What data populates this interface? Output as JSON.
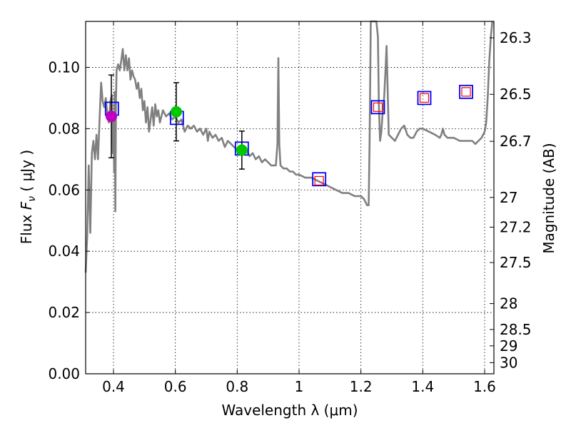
{
  "chart_data": {
    "type": "scatter",
    "title": "",
    "xlabel": "Wavelength  λ (μm)",
    "ylabel_prefix": "Flux ",
    "ylabel_symbol": "F",
    "ylabel_subscript": "ν",
    "ylabel_suffix": " ( μJy )",
    "y2label": "Magnitude (AB)",
    "xlim": [
      0.31,
      1.63
    ],
    "ylim": [
      0.0,
      0.115
    ],
    "grid": true,
    "xticks": [
      0.4,
      0.6,
      0.8,
      1.0,
      1.2,
      1.4,
      1.6
    ],
    "xtick_labels": [
      "0.4",
      "0.6",
      "0.8",
      "1",
      "1.2",
      "1.4",
      "1.6"
    ],
    "yticks": [
      0.0,
      0.02,
      0.04,
      0.06,
      0.08,
      0.1
    ],
    "ytick_labels": [
      "0.00",
      "0.02",
      "0.04",
      "0.06",
      "0.08",
      "0.10"
    ],
    "y2ticks": [
      {
        "label": "26.3",
        "mag": 26.3
      },
      {
        "label": "26.5",
        "mag": 26.5
      },
      {
        "label": "26.7",
        "mag": 26.7
      },
      {
        "label": "27",
        "mag": 27.0
      },
      {
        "label": "27.2",
        "mag": 27.2
      },
      {
        "label": "27.5",
        "mag": 27.5
      },
      {
        "label": "28",
        "mag": 28.0
      },
      {
        "label": "28.5",
        "mag": 28.5
      },
      {
        "label": "29",
        "mag": 29.0
      },
      {
        "label": "30",
        "mag": 30.0
      }
    ],
    "colors": {
      "spectrum": "#808080",
      "model_box": "#0000ff",
      "upper_box": "#ff0000",
      "violet_point": "#bf00bf",
      "green_point": "#00c800",
      "errorbar": "#000000"
    },
    "series": [
      {
        "name": "model spectrum",
        "kind": "line",
        "points": [
          [
            0.31,
            0.033
          ],
          [
            0.315,
            0.045
          ],
          [
            0.32,
            0.068
          ],
          [
            0.325,
            0.046
          ],
          [
            0.33,
            0.072
          ],
          [
            0.335,
            0.076
          ],
          [
            0.34,
            0.07
          ],
          [
            0.345,
            0.078
          ],
          [
            0.35,
            0.07
          ],
          [
            0.355,
            0.083
          ],
          [
            0.36,
            0.095
          ],
          [
            0.365,
            0.089
          ],
          [
            0.37,
            0.087
          ],
          [
            0.375,
            0.09
          ],
          [
            0.38,
            0.085
          ],
          [
            0.385,
            0.082
          ],
          [
            0.39,
            0.089
          ],
          [
            0.395,
            0.091
          ],
          [
            0.398,
            0.072
          ],
          [
            0.4,
            0.085
          ],
          [
            0.402,
            0.066
          ],
          [
            0.404,
            0.092
          ],
          [
            0.406,
            0.053
          ],
          [
            0.408,
            0.089
          ],
          [
            0.41,
            0.099
          ],
          [
            0.415,
            0.101
          ],
          [
            0.42,
            0.099
          ],
          [
            0.425,
            0.102
          ],
          [
            0.43,
            0.106
          ],
          [
            0.435,
            0.099
          ],
          [
            0.44,
            0.104
          ],
          [
            0.445,
            0.099
          ],
          [
            0.45,
            0.103
          ],
          [
            0.455,
            0.096
          ],
          [
            0.46,
            0.099
          ],
          [
            0.465,
            0.097
          ],
          [
            0.47,
            0.096
          ],
          [
            0.475,
            0.093
          ],
          [
            0.48,
            0.095
          ],
          [
            0.485,
            0.09
          ],
          [
            0.49,
            0.093
          ],
          [
            0.495,
            0.086
          ],
          [
            0.5,
            0.089
          ],
          [
            0.505,
            0.082
          ],
          [
            0.51,
            0.087
          ],
          [
            0.515,
            0.079
          ],
          [
            0.52,
            0.083
          ],
          [
            0.525,
            0.087
          ],
          [
            0.53,
            0.081
          ],
          [
            0.535,
            0.088
          ],
          [
            0.54,
            0.084
          ],
          [
            0.545,
            0.086
          ],
          [
            0.55,
            0.082
          ],
          [
            0.56,
            0.086
          ],
          [
            0.57,
            0.084
          ],
          [
            0.58,
            0.085
          ],
          [
            0.59,
            0.083
          ],
          [
            0.6,
            0.084
          ],
          [
            0.61,
            0.082
          ],
          [
            0.62,
            0.083
          ],
          [
            0.63,
            0.079
          ],
          [
            0.64,
            0.081
          ],
          [
            0.65,
            0.08
          ],
          [
            0.66,
            0.081
          ],
          [
            0.67,
            0.079
          ],
          [
            0.68,
            0.08
          ],
          [
            0.69,
            0.078
          ],
          [
            0.7,
            0.08
          ],
          [
            0.705,
            0.076
          ],
          [
            0.71,
            0.079
          ],
          [
            0.72,
            0.077
          ],
          [
            0.73,
            0.078
          ],
          [
            0.74,
            0.076
          ],
          [
            0.75,
            0.077
          ],
          [
            0.76,
            0.074
          ],
          [
            0.77,
            0.076
          ],
          [
            0.78,
            0.075
          ],
          [
            0.79,
            0.074
          ],
          [
            0.8,
            0.073
          ],
          [
            0.81,
            0.074
          ],
          [
            0.82,
            0.072
          ],
          [
            0.83,
            0.073
          ],
          [
            0.84,
            0.071
          ],
          [
            0.85,
            0.072
          ],
          [
            0.86,
            0.07
          ],
          [
            0.87,
            0.071
          ],
          [
            0.88,
            0.069
          ],
          [
            0.89,
            0.07
          ],
          [
            0.9,
            0.069
          ],
          [
            0.91,
            0.068
          ],
          [
            0.92,
            0.068
          ],
          [
            0.925,
            0.068
          ],
          [
            0.93,
            0.075
          ],
          [
            0.933,
            0.103
          ],
          [
            0.936,
            0.075
          ],
          [
            0.94,
            0.068
          ],
          [
            0.95,
            0.067
          ],
          [
            0.96,
            0.067
          ],
          [
            0.97,
            0.066
          ],
          [
            0.98,
            0.066
          ],
          [
            0.99,
            0.065
          ],
          [
            1.0,
            0.065
          ],
          [
            1.02,
            0.064
          ],
          [
            1.04,
            0.064
          ],
          [
            1.06,
            0.063
          ],
          [
            1.08,
            0.062
          ],
          [
            1.1,
            0.061
          ],
          [
            1.12,
            0.06
          ],
          [
            1.14,
            0.059
          ],
          [
            1.16,
            0.059
          ],
          [
            1.18,
            0.058
          ],
          [
            1.2,
            0.058
          ],
          [
            1.21,
            0.057
          ],
          [
            1.22,
            0.055
          ],
          [
            1.225,
            0.055
          ],
          [
            1.228,
            0.075
          ],
          [
            1.232,
            0.115
          ],
          [
            1.25,
            0.115
          ],
          [
            1.255,
            0.11
          ],
          [
            1.258,
            0.088
          ],
          [
            1.262,
            0.076
          ],
          [
            1.266,
            0.079
          ],
          [
            1.27,
            0.085
          ],
          [
            1.275,
            0.09
          ],
          [
            1.28,
            0.1
          ],
          [
            1.283,
            0.107
          ],
          [
            1.286,
            0.095
          ],
          [
            1.29,
            0.078
          ],
          [
            1.3,
            0.077
          ],
          [
            1.31,
            0.076
          ],
          [
            1.32,
            0.078
          ],
          [
            1.33,
            0.08
          ],
          [
            1.34,
            0.081
          ],
          [
            1.35,
            0.078
          ],
          [
            1.36,
            0.077
          ],
          [
            1.37,
            0.077
          ],
          [
            1.38,
            0.079
          ],
          [
            1.39,
            0.08
          ],
          [
            1.4,
            0.08
          ],
          [
            1.42,
            0.079
          ],
          [
            1.44,
            0.078
          ],
          [
            1.455,
            0.077
          ],
          [
            1.46,
            0.078
          ],
          [
            1.465,
            0.08
          ],
          [
            1.47,
            0.078
          ],
          [
            1.48,
            0.077
          ],
          [
            1.5,
            0.077
          ],
          [
            1.52,
            0.076
          ],
          [
            1.54,
            0.076
          ],
          [
            1.56,
            0.076
          ],
          [
            1.57,
            0.075
          ],
          [
            1.58,
            0.076
          ],
          [
            1.59,
            0.077
          ],
          [
            1.6,
            0.079
          ],
          [
            1.605,
            0.082
          ],
          [
            1.61,
            0.09
          ],
          [
            1.615,
            0.102
          ],
          [
            1.62,
            0.11
          ],
          [
            1.625,
            0.115
          ]
        ]
      },
      {
        "name": "synthetic photometry",
        "kind": "box",
        "color": "model_box",
        "points": [
          [
            0.395,
            0.0865
          ],
          [
            0.605,
            0.0835
          ],
          [
            0.815,
            0.0735
          ],
          [
            1.065,
            0.0635
          ],
          [
            1.255,
            0.087
          ],
          [
            1.405,
            0.09
          ],
          [
            1.54,
            0.092
          ]
        ]
      },
      {
        "name": "upper limits",
        "kind": "small-box",
        "color": "upper_box",
        "points": [
          [
            1.065,
            0.063
          ],
          [
            1.255,
            0.087
          ],
          [
            1.405,
            0.09
          ],
          [
            1.54,
            0.092
          ]
        ]
      },
      {
        "name": "measured (violet)",
        "kind": "point",
        "color": "violet_point",
        "points": [
          [
            0.393,
            0.084,
            0.0135
          ]
        ]
      },
      {
        "name": "measured (green)",
        "kind": "point",
        "color": "green_point",
        "points": [
          [
            0.603,
            0.0855,
            0.0095
          ],
          [
            0.815,
            0.073,
            0.0062
          ]
        ]
      }
    ]
  }
}
